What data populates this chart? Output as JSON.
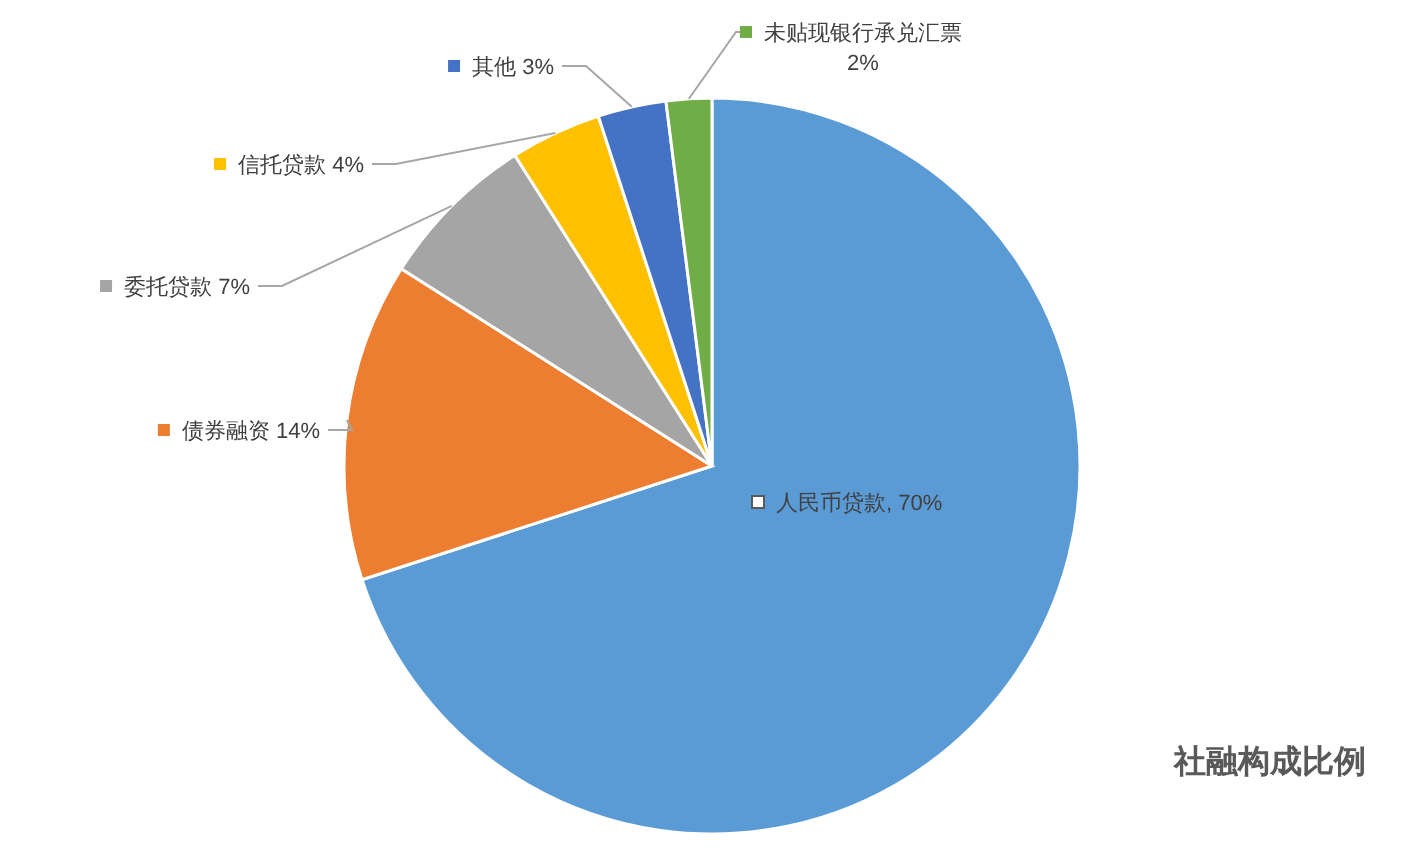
{
  "chart_data": {
    "type": "pie",
    "title": "社融构成比例",
    "categories": [
      "人民币贷款",
      "债券融资",
      "委托贷款",
      "信托贷款",
      "其他",
      "未贴现银行承兑汇票"
    ],
    "values": [
      70,
      14,
      7,
      4,
      3,
      2
    ],
    "colors": [
      "#5b9bd5",
      "#ed7d31",
      "#a5a5a5",
      "#ffc000",
      "#4472c4",
      "#70ad47"
    ],
    "value_labels": [
      "70%",
      "14%",
      "7%",
      "4%",
      "3%",
      "2%"
    ],
    "legend": "top left"
  }
}
